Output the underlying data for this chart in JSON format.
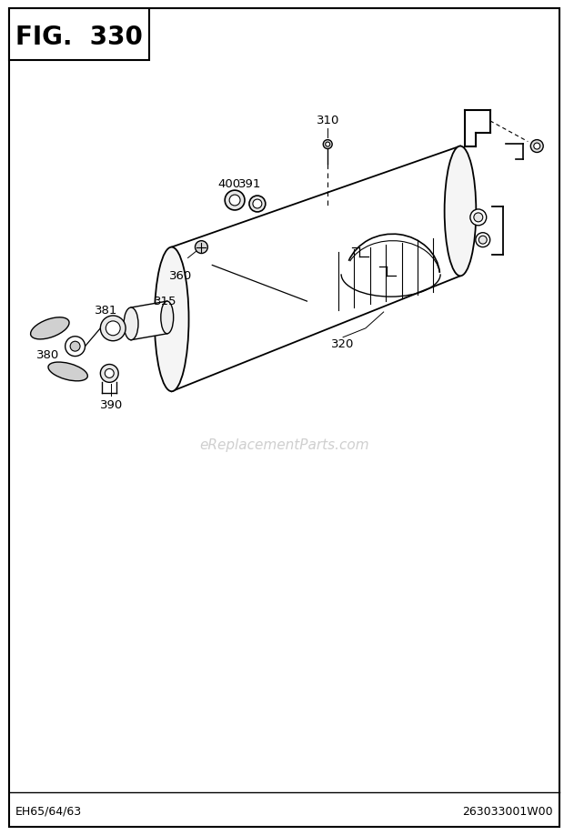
{
  "title": "FIG.  330",
  "bottom_left": "EH65/64/63",
  "bottom_right": "263033001W00",
  "watermark": "eReplacementParts.com",
  "bg_color": "#ffffff",
  "fig_width": 6.2,
  "fig_height": 9.18,
  "dpi": 100
}
